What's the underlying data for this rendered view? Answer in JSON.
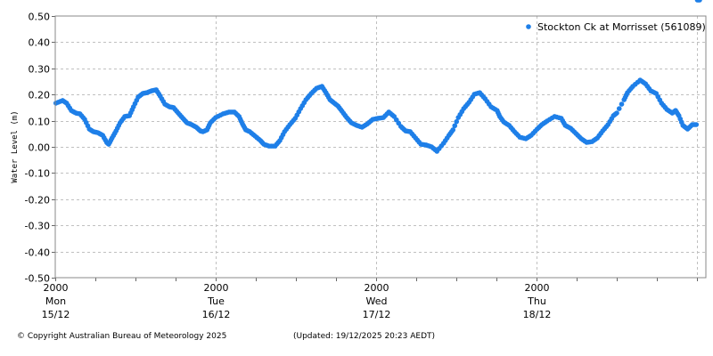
{
  "chart_data": {
    "type": "scatter",
    "title": "",
    "xlabel": "",
    "ylabel": "Water Level (m)",
    "ylim": [
      -0.5,
      0.5
    ],
    "yticks": [
      "0.50",
      "0.40",
      "0.30",
      "0.20",
      "0.10",
      "0.00",
      "-0.10",
      "-0.20",
      "-0.30",
      "-0.40",
      "-0.50"
    ],
    "grid": true,
    "legend_position": "top-right",
    "series": [
      {
        "name": "Stockton Ck at Morrisset (561089)",
        "color": "#1e7fe8",
        "x_hours": [
          0.1,
          1.1,
          1.7,
          2.4,
          3.1,
          3.7,
          4.4,
          5.1,
          5.7,
          6.4,
          7.1,
          7.7,
          8.0,
          8.5,
          9.1,
          9.7,
          10.4,
          11.1,
          11.7,
          12.4,
          13.1,
          13.7,
          14.4,
          15.1,
          15.7,
          16.4,
          17.1,
          17.7,
          18.4,
          19.1,
          19.7,
          20.4,
          21.1,
          21.7,
          22.1,
          22.7,
          23.2,
          24.0,
          25.1,
          26.0,
          26.8,
          27.5,
          28.0,
          28.5,
          29.1,
          29.9,
          30.7,
          31.2,
          32.0,
          32.9,
          33.6,
          34.3,
          35.1,
          35.9,
          36.7,
          37.5,
          38.3,
          39.1,
          39.9,
          40.5,
          41.1,
          41.6,
          42.3,
          42.9,
          43.6,
          44.3,
          45.1,
          45.9,
          46.7,
          47.5,
          48.3,
          49.1,
          49.9,
          50.7,
          51.7,
          52.4,
          53.1,
          53.9,
          54.7,
          55.5,
          56.3,
          57.1,
          58.1,
          58.9,
          59.5,
          60.3,
          61.1,
          61.9,
          62.7,
          63.5,
          64.3,
          65.2,
          66.1,
          66.5,
          67.1,
          67.9,
          68.7,
          69.5,
          70.4,
          71.2,
          72.1,
          72.8,
          73.6,
          74.7,
          75.7,
          76.3,
          77.1,
          77.9,
          78.7,
          79.5,
          80.3,
          81.1,
          81.9,
          82.7,
          83.5,
          84.0,
          85.1,
          85.6,
          86.4,
          87.5,
          88.3,
          89.1,
          89.9,
          90.7,
          91.5,
          92.3,
          92.8,
          93.3,
          93.9,
          94.6,
          95.3,
          95.9,
          96.4
        ],
        "values": [
          0.167,
          0.177,
          0.167,
          0.139,
          0.129,
          0.126,
          0.105,
          0.068,
          0.058,
          0.054,
          0.044,
          0.017,
          0.01,
          0.034,
          0.061,
          0.092,
          0.116,
          0.119,
          0.153,
          0.19,
          0.204,
          0.207,
          0.214,
          0.218,
          0.194,
          0.163,
          0.153,
          0.15,
          0.129,
          0.109,
          0.092,
          0.085,
          0.075,
          0.061,
          0.058,
          0.065,
          0.092,
          0.112,
          0.126,
          0.133,
          0.133,
          0.116,
          0.088,
          0.065,
          0.058,
          0.041,
          0.024,
          0.01,
          0.003,
          0.003,
          0.024,
          0.058,
          0.085,
          0.109,
          0.146,
          0.18,
          0.204,
          0.224,
          0.231,
          0.207,
          0.18,
          0.17,
          0.156,
          0.136,
          0.112,
          0.092,
          0.082,
          0.075,
          0.088,
          0.105,
          0.109,
          0.112,
          0.133,
          0.116,
          0.078,
          0.061,
          0.058,
          0.034,
          0.01,
          0.007,
          0.0,
          -0.017,
          0.014,
          0.044,
          0.065,
          0.112,
          0.146,
          0.17,
          0.201,
          0.207,
          0.184,
          0.153,
          0.139,
          0.116,
          0.095,
          0.082,
          0.058,
          0.037,
          0.031,
          0.044,
          0.068,
          0.085,
          0.099,
          0.116,
          0.109,
          0.082,
          0.071,
          0.051,
          0.031,
          0.017,
          0.02,
          0.034,
          0.061,
          0.085,
          0.119,
          0.129,
          0.18,
          0.207,
          0.231,
          0.255,
          0.241,
          0.214,
          0.204,
          0.167,
          0.143,
          0.129,
          0.139,
          0.119,
          0.082,
          0.068,
          0.085,
          0.085
        ]
      }
    ],
    "x_axis": {
      "ticks": [
        {
          "time": "2000",
          "day": "Mon",
          "date": "15/12"
        },
        {
          "time": "2000",
          "day": "Tue",
          "date": "16/12"
        },
        {
          "time": "2000",
          "day": "Wed",
          "date": "17/12"
        },
        {
          "time": "2000",
          "day": "Thu",
          "date": "18/12"
        }
      ],
      "minor_tick_interval_hours": 6,
      "range_hours": [
        0,
        97.3
      ]
    }
  },
  "legend": {
    "label": "Stockton Ck at Morrisset (561089)"
  },
  "footer": {
    "copyright": "© Copyright Australian Bureau of Meteorology 2025",
    "updated": "(Updated: 19/12/2025 20:23 AEDT)"
  }
}
